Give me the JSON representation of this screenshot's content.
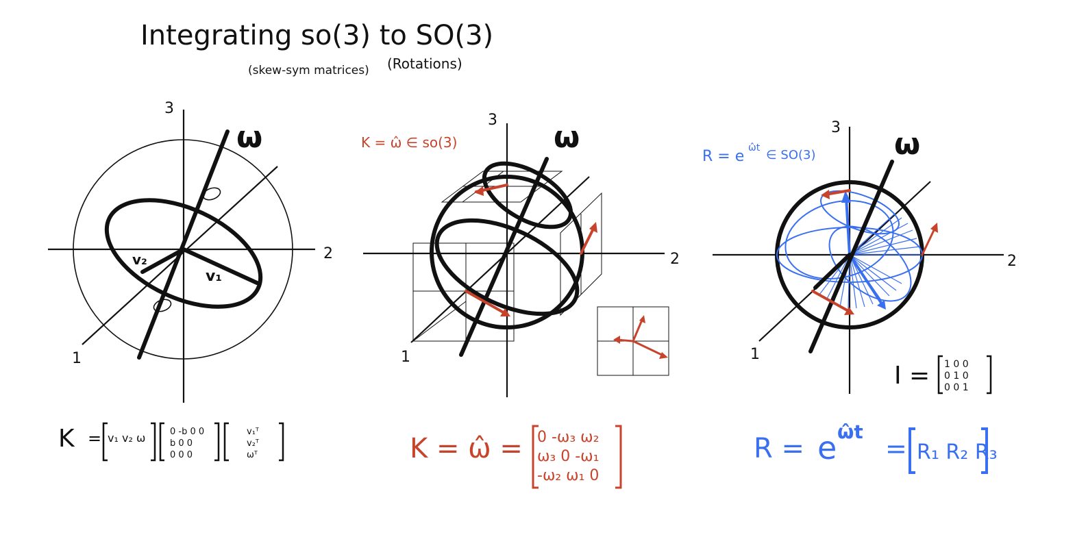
{
  "title": {
    "main": "Integrating so(3) to SO(3)",
    "sub_left": "(skew-sym matrices)",
    "sub_right": "(Rotations)"
  },
  "axis_labels": {
    "one": "1",
    "two": "2",
    "three": "3"
  },
  "omega_label": "ω",
  "panel1": {
    "v1_label": "v₁",
    "v2_label": "v₂",
    "equation": {
      "lhs": "K",
      "eq": "=",
      "col_matrix": "v₁ v₂ ω",
      "mid_matrix_rows": [
        "0  -b  0 0",
        "b   0  0",
        "0   0  0"
      ],
      "right_matrix_rows": [
        "v₁ᵀ",
        "v₂ᵀ",
        "ωᵀ"
      ]
    }
  },
  "panel2": {
    "annotation": "K = ω̂ ∈ so(3)",
    "equation": {
      "lhs": "K = ω̂ =",
      "rows": [
        "0  -ω₃  ω₂",
        "ω₃   0  -ω₁",
        "-ω₂  ω₁   0"
      ]
    }
  },
  "panel3": {
    "annotation_base": "R = e",
    "annotation_exp": "ω̂t",
    "annotation_tail": "∈ SO(3)",
    "identity": {
      "lhs": "I =",
      "rows": [
        "1 0 0",
        "0 1 0",
        "0 0 1"
      ]
    },
    "equation": {
      "lhs": "R =",
      "base": "e",
      "exp": "ω̂t",
      "eq": "=",
      "matrix": "R₁ R₂ R₃"
    }
  },
  "colors": {
    "ink": "#111111",
    "red": "#c8432b",
    "blue": "#3a6ff0"
  }
}
